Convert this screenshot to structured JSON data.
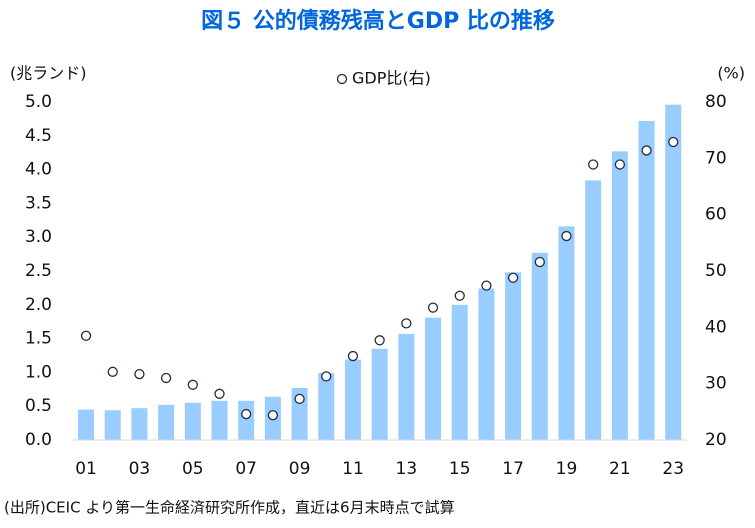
{
  "chart_data": {
    "type": "bar",
    "title": "図５ 公的債務残高とGDP 比の推移",
    "y_label": "(兆ランド)",
    "y2_label": "(%)",
    "note": "(出所)CEIC より第一生命経済研究所作成，直近は6月末時点で試算",
    "categories": [
      "01",
      null,
      "03",
      null,
      "05",
      null,
      "07",
      null,
      "09",
      null,
      "11",
      null,
      "13",
      null,
      "15",
      null,
      "17",
      null,
      "19",
      null,
      "21",
      null,
      "23"
    ],
    "series": [
      {
        "color": "#99ccff",
        "values": [
          0.45,
          0.44,
          0.47,
          0.52,
          0.55,
          0.58,
          0.58,
          0.64,
          0.77,
          0.99,
          1.19,
          1.35,
          1.57,
          1.81,
          2.0,
          2.24,
          2.48,
          2.77,
          3.16,
          3.84,
          4.27,
          4.72,
          4.96
        ]
      },
      {
        "name": "GDP比(右)",
        "type": "scatter",
        "axis": "y2",
        "color": "#1f2d3d",
        "values": [
          38.5,
          32.1,
          31.7,
          31.0,
          29.8,
          28.2,
          24.6,
          24.4,
          27.3,
          31.3,
          34.9,
          37.7,
          40.7,
          43.5,
          45.6,
          47.4,
          48.8,
          51.6,
          56.2,
          68.9,
          68.9,
          71.4,
          72.9
        ]
      }
    ],
    "ylim": [
      0,
      5
    ],
    "yticks": [
      {
        "value": 0,
        "label": "0.0"
      },
      {
        "value": 0.5,
        "label": "0.5"
      },
      {
        "value": 1,
        "label": "1.0"
      },
      {
        "value": 1.5,
        "label": "1.5"
      },
      {
        "value": 2,
        "label": "2.0"
      },
      {
        "value": 2.5,
        "label": "2.5"
      },
      {
        "value": 3,
        "label": "3.0"
      },
      {
        "value": 3.5,
        "label": "3.5"
      },
      {
        "value": 4,
        "label": "4.0"
      },
      {
        "value": 4.5,
        "label": "4.5"
      },
      {
        "value": 5,
        "label": "5.0"
      }
    ],
    "y2lim": [
      20,
      80
    ],
    "y2ticks": [
      20,
      30,
      40,
      50,
      60,
      70,
      80
    ],
    "grid": false
  }
}
